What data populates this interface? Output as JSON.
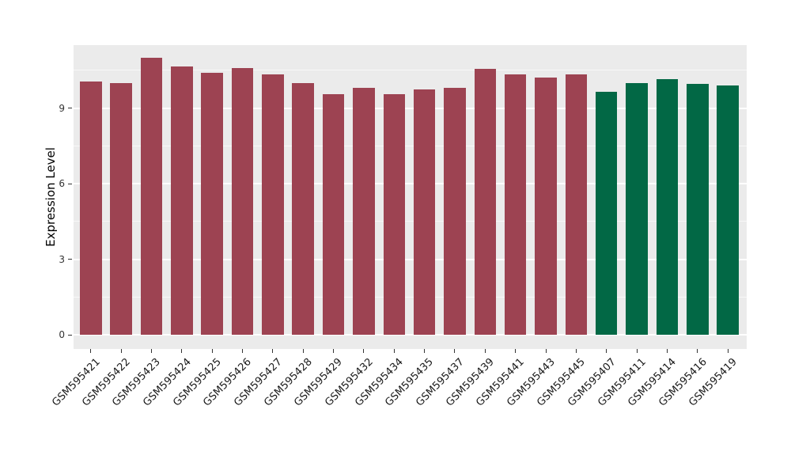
{
  "chart_data": {
    "type": "bar",
    "ylabel": "Expression Level",
    "ylim": [
      0,
      11.5
    ],
    "yticks_major": [
      0,
      3,
      6,
      9
    ],
    "yticks_minor": [
      1.5,
      4.5,
      7.5,
      10.5
    ],
    "grid": "on",
    "legend": "none",
    "colors": {
      "figure_background": "#FFFFFF",
      "panel_background": "#EBEBEB",
      "gridline": "#FFFFFF",
      "axis_text": "#333333",
      "group_red": "#9D4352",
      "group_green": "#026845"
    },
    "groups": [
      {
        "name": "group-red",
        "color": "#9D4352"
      },
      {
        "name": "group-green",
        "color": "#026845"
      }
    ],
    "samples": [
      {
        "id": "GSM595421",
        "value": 10.05,
        "group": 0
      },
      {
        "id": "GSM595422",
        "value": 10.0,
        "group": 0
      },
      {
        "id": "GSM595423",
        "value": 11.0,
        "group": 0
      },
      {
        "id": "GSM595424",
        "value": 10.65,
        "group": 0
      },
      {
        "id": "GSM595425",
        "value": 10.4,
        "group": 0
      },
      {
        "id": "GSM595426",
        "value": 10.6,
        "group": 0
      },
      {
        "id": "GSM595427",
        "value": 10.35,
        "group": 0
      },
      {
        "id": "GSM595428",
        "value": 10.0,
        "group": 0
      },
      {
        "id": "GSM595429",
        "value": 9.55,
        "group": 0
      },
      {
        "id": "GSM595432",
        "value": 9.8,
        "group": 0
      },
      {
        "id": "GSM595434",
        "value": 9.55,
        "group": 0
      },
      {
        "id": "GSM595435",
        "value": 9.75,
        "group": 0
      },
      {
        "id": "GSM595437",
        "value": 9.8,
        "group": 0
      },
      {
        "id": "GSM595439",
        "value": 10.55,
        "group": 0
      },
      {
        "id": "GSM595441",
        "value": 10.35,
        "group": 0
      },
      {
        "id": "GSM595443",
        "value": 10.2,
        "group": 0
      },
      {
        "id": "GSM595445",
        "value": 10.35,
        "group": 0
      },
      {
        "id": "GSM595407",
        "value": 9.65,
        "group": 1
      },
      {
        "id": "GSM595411",
        "value": 10.0,
        "group": 1
      },
      {
        "id": "GSM595414",
        "value": 10.15,
        "group": 1
      },
      {
        "id": "GSM595416",
        "value": 9.95,
        "group": 1
      },
      {
        "id": "GSM595419",
        "value": 9.9,
        "group": 1
      }
    ]
  }
}
